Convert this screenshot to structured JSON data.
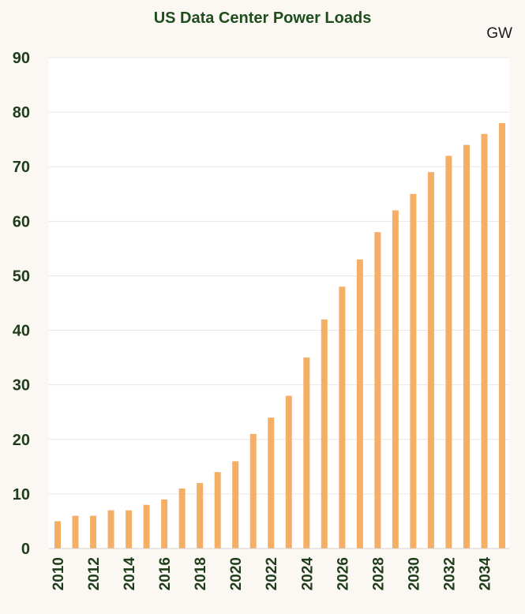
{
  "chart_data": {
    "type": "bar",
    "title": "US Data Center Power Loads",
    "unit": "GW",
    "xlabel": "",
    "ylabel": "",
    "ylim": [
      0,
      90
    ],
    "yticks": [
      0,
      10,
      20,
      30,
      40,
      50,
      60,
      70,
      80,
      90
    ],
    "grid": true,
    "categories": [
      "2010",
      "2011",
      "2012",
      "2013",
      "2014",
      "2015",
      "2016",
      "2017",
      "2018",
      "2019",
      "2020",
      "2021",
      "2022",
      "2023",
      "2024",
      "2025",
      "2026",
      "2027",
      "2028",
      "2029",
      "2030",
      "2031",
      "2032",
      "2033",
      "2034",
      "2035"
    ],
    "xtick_labels": [
      "2010",
      "2012",
      "2014",
      "2016",
      "2018",
      "2020",
      "2022",
      "2024",
      "2026",
      "2028",
      "2030",
      "2032",
      "2034"
    ],
    "values": [
      5,
      6,
      6,
      7,
      7,
      8,
      9,
      11,
      12,
      14,
      16,
      21,
      24,
      28,
      35,
      42,
      48,
      53,
      58,
      62,
      65,
      69,
      72,
      74,
      76,
      78
    ],
    "colors": {
      "bar": "#f4ae66",
      "title": "#1f4d1d",
      "axis_text": "#1f3d1a",
      "grid": "#ebe6e1",
      "plot_bg": "#ffffff"
    }
  }
}
